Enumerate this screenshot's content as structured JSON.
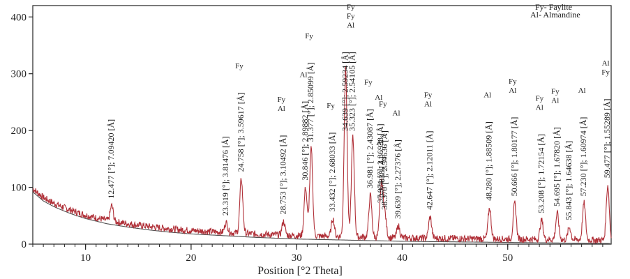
{
  "chart_data": {
    "type": "line",
    "title": "",
    "xlabel": "Position [°2 Theta]",
    "ylabel": "",
    "xlim": [
      5,
      59.8
    ],
    "ylim": [
      0,
      420
    ],
    "x_ticks": [
      10,
      20,
      30,
      40,
      50
    ],
    "x_minor_step": 1,
    "y_ticks": [
      0,
      100,
      200,
      300,
      400
    ],
    "grid": false,
    "colors": {
      "pattern": "#b03038",
      "background_fit": "#505050",
      "axis": "#222222"
    },
    "legend": {
      "position": "top-right",
      "entries": [
        "Fy- Faylite",
        "Al- Almandine"
      ]
    },
    "series": [
      {
        "kind": "background",
        "x": [
          5,
          6,
          7,
          8,
          9,
          10,
          12,
          14,
          16,
          18,
          20,
          23,
          26,
          30,
          35,
          40,
          45,
          50,
          55,
          59.8
        ],
        "y": [
          98,
          82,
          72,
          64,
          57,
          51,
          42,
          36,
          31,
          27,
          24,
          21,
          18,
          15,
          13,
          11,
          10,
          9,
          8,
          7
        ]
      }
    ],
    "peaks": [
      {
        "x": 12.477,
        "y": 68,
        "label": "12.477 [°]; 7.09420 [Å]",
        "phases": []
      },
      {
        "x": 23.319,
        "y": 38,
        "label": "23.319 [°]; 3.81476 [Å]",
        "phases": []
      },
      {
        "x": 24.758,
        "y": 115,
        "label": "24.758 [°]; 3.59617 [Å]",
        "phases": [
          "Fy"
        ]
      },
      {
        "x": 28.753,
        "y": 40,
        "label": "28.753 [°]; 3.10492 [Å]",
        "phases": [
          "Al",
          "Fy"
        ]
      },
      {
        "x": 30.846,
        "y": 100,
        "label": "30.846 [°]; 2.89882 [Å]",
        "phases": [
          "Al"
        ]
      },
      {
        "x": 31.377,
        "y": 168,
        "label": "31.377 [°]; 2.85099 [Å]",
        "phases": [
          "Fy"
        ]
      },
      {
        "x": 33.432,
        "y": 45,
        "label": "33.432 [°]; 2.68033 [Å]",
        "phases": [
          "Fy"
        ]
      },
      {
        "x": 34.639,
        "y": 308,
        "label": "34.639 [°]; 2.59234 [Å]",
        "phases": []
      },
      {
        "x": 35.323,
        "y": 188,
        "label": "35.323 [°]; 2.54105 [Å]",
        "phases": [
          "Al",
          "Fy",
          "Fy"
        ]
      },
      {
        "x": 36.981,
        "y": 86,
        "label": "36.981 [°]; 2.43087 [Å]",
        "phases": [
          "Fy"
        ]
      },
      {
        "x": 37.971,
        "y": 60,
        "label": "37.971 [°]; 2.36938 [Å]",
        "phases": [
          "Al"
        ]
      },
      {
        "x": 38.103,
        "y": 70,
        "label": "2.37838 [Å]",
        "phases": [
          "Al"
        ]
      },
      {
        "x": 38.37,
        "y": 48,
        "label": "38.370 [°]; 2.34636 [Å]",
        "phases": [
          "Fy"
        ]
      },
      {
        "x": 39.639,
        "y": 32,
        "label": "39.639 [°]; 2.27376 [Å]",
        "phases": [
          "Al"
        ]
      },
      {
        "x": 42.647,
        "y": 48,
        "label": "42.647 [°]; 2.12011 [Å]",
        "phases": [
          "Al",
          "Fy"
        ]
      },
      {
        "x": 48.28,
        "y": 64,
        "label": "48.280 [°]; 1.88509 [Å]",
        "phases": [
          "Al"
        ]
      },
      {
        "x": 50.666,
        "y": 72,
        "label": "50.666 [°]; 1.80177 [Å]",
        "phases": [
          "Al",
          "Fy"
        ]
      },
      {
        "x": 53.208,
        "y": 42,
        "label": "53.208 [°]; 1.72154 [Å]",
        "phases": [
          "Al",
          "Fy"
        ]
      },
      {
        "x": 54.695,
        "y": 54,
        "label": "54.695 [°]; 1.67820 [Å]",
        "phases": [
          "Al",
          "Fy"
        ]
      },
      {
        "x": 55.843,
        "y": 30,
        "label": "55.843 [°]; 1.64638 [Å]",
        "phases": []
      },
      {
        "x": 57.23,
        "y": 72,
        "label": "57.230 [°]; 1.60974 [Å]",
        "phases": [
          "Al"
        ]
      },
      {
        "x": 59.477,
        "y": 104,
        "label": "59.477 [°]; 1.55289 [Å]",
        "phases": [
          "Fy",
          "Al"
        ]
      }
    ]
  }
}
